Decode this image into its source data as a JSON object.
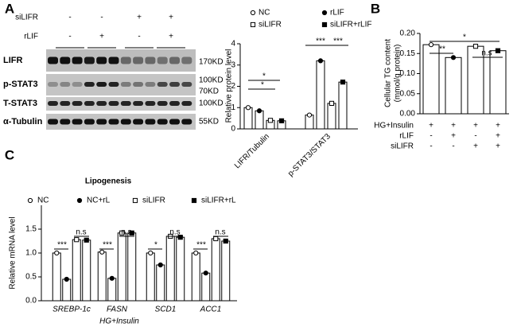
{
  "panel_labels": [
    "A",
    "B",
    "C"
  ],
  "blot": {
    "row_labels": [
      "siLIFR",
      "rLIF"
    ],
    "signs": [
      [
        "-",
        "-",
        "+",
        "+"
      ],
      [
        "-",
        "+",
        "-",
        "+"
      ]
    ],
    "bands": [
      "LIFR",
      "p-STAT3",
      "T-STAT3",
      "α-Tubulin"
    ],
    "markers": [
      "170KD",
      "100KD",
      "70KD",
      "100KD",
      "55KD"
    ]
  },
  "chart_data": [
    {
      "type": "bar",
      "y_label": "Relative protein level",
      "categories": [
        "LIFR/Tubulin",
        "p-STAT3/STAT3"
      ],
      "series": [
        {
          "name": "NC",
          "color": "#ffffff",
          "marker": "circle-open",
          "values": [
            1.0,
            0.65
          ]
        },
        {
          "name": "rLIF",
          "color": "#ffffff",
          "marker": "circle-filled",
          "values": [
            0.85,
            3.2
          ]
        },
        {
          "name": "siLIFR",
          "color": "#ffffff",
          "marker": "square-open",
          "values": [
            0.4,
            1.2
          ]
        },
        {
          "name": "siLIFR+rLIF",
          "color": "#ffffff",
          "marker": "square-filled",
          "values": [
            0.38,
            2.2
          ]
        }
      ],
      "ylim": [
        0,
        4
      ],
      "yticks": [
        0,
        1,
        2,
        3,
        4
      ],
      "annotations": [
        "*",
        "*",
        "***",
        "***"
      ]
    },
    {
      "type": "bar",
      "y_label": [
        "Cellular TG content",
        "(mmol/g protein)"
      ],
      "categories": [
        null,
        null,
        null,
        null
      ],
      "series": [
        {
          "color": "#ffffff",
          "markers": [
            "circle-open",
            "circle-filled",
            "square-open",
            "square-filled"
          ],
          "values": [
            0.172,
            0.14,
            0.168,
            0.157
          ]
        }
      ],
      "ylim": [
        0,
        0.2
      ],
      "yticks": [
        {
          "value": 0,
          "label": "0.00"
        },
        {
          "value": 0.05,
          "label": "0.05"
        },
        {
          "value": 0.1,
          "label": "0.10"
        },
        {
          "value": 0.15,
          "label": "0.15"
        },
        {
          "value": 0.2,
          "label": "0.20"
        }
      ],
      "conditions": [
        {
          "label": "HG+Insulin",
          "signs": [
            "+",
            "+",
            "+",
            "+"
          ]
        },
        {
          "label": "rLIF",
          "signs": [
            "-",
            "+",
            "-",
            "+"
          ]
        },
        {
          "label": "siLIFR",
          "signs": [
            "-",
            "-",
            "+",
            "+"
          ]
        }
      ],
      "annotations": [
        "**",
        "*",
        "n.s"
      ]
    },
    {
      "type": "bar",
      "title": "Lipogenesis",
      "y_label": "Relative mRNA level",
      "x_label": "HG+Insulin",
      "categories": [
        "SREBP-1c",
        "FASN",
        "SCD1",
        "ACC1"
      ],
      "series": [
        {
          "name": "NC",
          "color": "#ffffff",
          "marker": "circle-open",
          "values": [
            1.0,
            1.02,
            1.0,
            1.0
          ]
        },
        {
          "name": "NC+rL",
          "color": "#ffffff",
          "marker": "circle-filled",
          "values": [
            0.45,
            0.47,
            0.75,
            0.58
          ]
        },
        {
          "name": "siLIFR",
          "color": "#ffffff",
          "marker": "square-open",
          "values": [
            1.28,
            1.42,
            1.35,
            1.3
          ]
        },
        {
          "name": "siLIFR+rL",
          "color": "#ffffff",
          "marker": "square-filled",
          "values": [
            1.27,
            1.42,
            1.33,
            1.25
          ]
        }
      ],
      "ylim": [
        0,
        2
      ],
      "yticks": [
        {
          "value": 0,
          "label": "0.0"
        },
        {
          "value": 0.5,
          "label": "0.5"
        },
        {
          "value": 1,
          "label": "1.0"
        },
        {
          "value": 1.5,
          "label": "1.5"
        }
      ],
      "annotations": [
        "***",
        "n.s",
        "***",
        "n.s",
        "*",
        "n.s",
        "***",
        "n.s"
      ]
    }
  ]
}
